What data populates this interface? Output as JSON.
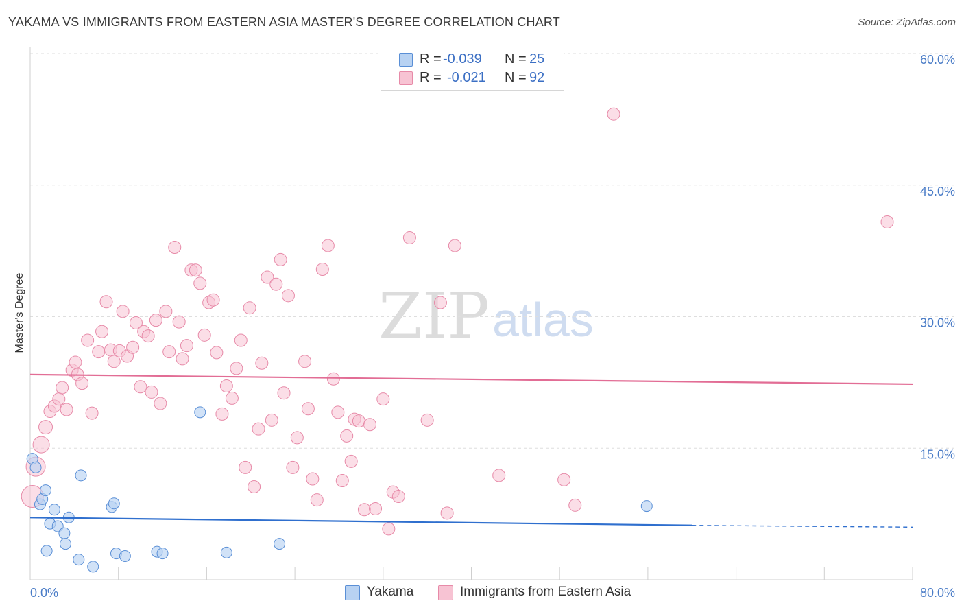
{
  "header": {
    "title": "YAKAMA VS IMMIGRANTS FROM EASTERN ASIA MASTER'S DEGREE CORRELATION CHART",
    "source": "Source: ZipAtlas.com"
  },
  "legend": {
    "rows": [
      {
        "r_label": "R =",
        "r_value": "-0.039",
        "n_label": "N =",
        "n_value": "25"
      },
      {
        "r_label": "R =",
        "r_value": "-0.021",
        "n_label": "N =",
        "n_value": "92"
      }
    ]
  },
  "bottom_legend": [
    {
      "label": "Yakama"
    },
    {
      "label": "Immigrants from Eastern Asia"
    }
  ],
  "watermark": {
    "zip": "ZIP",
    "atlas": "atlas"
  },
  "colors": {
    "blue_fill": "#b8d2f2",
    "blue_stroke": "#5a8fd6",
    "blue_line": "#2f6fce",
    "pink_fill": "#f7c3d3",
    "pink_stroke": "#e78aa8",
    "pink_line": "#e26d95",
    "tick_text": "#4a7cc7",
    "grid": "#dedede"
  },
  "chart_data": {
    "type": "scatter",
    "title": "YAKAMA VS IMMIGRANTS FROM EASTERN ASIA MASTER'S DEGREE CORRELATION CHART",
    "xlabel": "",
    "ylabel": "Master's Degree",
    "xlim": [
      0,
      80
    ],
    "ylim": [
      0,
      60
    ],
    "x_ticks": [
      "0.0%",
      "80.0%"
    ],
    "y_ticks": [
      {
        "value": 15,
        "label": "15.0%"
      },
      {
        "value": 30,
        "label": "30.0%"
      },
      {
        "value": 45,
        "label": "45.0%"
      },
      {
        "value": 60,
        "label": "60.0%"
      }
    ],
    "grid": true,
    "legend_position": "top-center",
    "series": [
      {
        "name": "Yakama",
        "color": "#5a8fd6",
        "points": [
          [
            0.2,
            13.8
          ],
          [
            0.5,
            12.8
          ],
          [
            0.9,
            8.6
          ],
          [
            1.1,
            9.2
          ],
          [
            1.4,
            10.2
          ],
          [
            1.5,
            3.3
          ],
          [
            1.8,
            6.4
          ],
          [
            2.2,
            8.0
          ],
          [
            2.5,
            6.1
          ],
          [
            3.1,
            5.3
          ],
          [
            3.2,
            4.1
          ],
          [
            3.5,
            7.1
          ],
          [
            4.4,
            2.3
          ],
          [
            4.6,
            11.9
          ],
          [
            5.7,
            1.5
          ],
          [
            7.4,
            8.3
          ],
          [
            7.6,
            8.7
          ],
          [
            7.8,
            3.0
          ],
          [
            8.6,
            2.7
          ],
          [
            11.5,
            3.2
          ],
          [
            12.0,
            3.0
          ],
          [
            15.4,
            19.1
          ],
          [
            17.8,
            3.1
          ],
          [
            22.6,
            4.1
          ],
          [
            55.9,
            8.4
          ]
        ],
        "trend": {
          "x": [
            0,
            60
          ],
          "y": [
            7.1,
            6.2
          ],
          "dashed_to": [
            80,
            6.0
          ]
        }
      },
      {
        "name": "Immigrants from Eastern Asia",
        "color": "#e78aa8",
        "points": [
          [
            0.2,
            9.5
          ],
          [
            0.5,
            12.9
          ],
          [
            1.0,
            15.4
          ],
          [
            1.4,
            17.4
          ],
          [
            1.8,
            19.2
          ],
          [
            2.2,
            19.8
          ],
          [
            2.6,
            20.6
          ],
          [
            2.9,
            21.9
          ],
          [
            3.3,
            19.4
          ],
          [
            3.8,
            23.9
          ],
          [
            4.1,
            24.8
          ],
          [
            4.3,
            23.4
          ],
          [
            4.7,
            22.4
          ],
          [
            5.2,
            27.3
          ],
          [
            5.6,
            19.0
          ],
          [
            6.2,
            26.0
          ],
          [
            6.5,
            28.3
          ],
          [
            6.9,
            31.7
          ],
          [
            7.3,
            26.2
          ],
          [
            7.6,
            24.9
          ],
          [
            8.1,
            26.1
          ],
          [
            8.4,
            30.6
          ],
          [
            8.8,
            25.5
          ],
          [
            9.3,
            26.5
          ],
          [
            9.6,
            29.3
          ],
          [
            10.0,
            22.0
          ],
          [
            10.3,
            28.3
          ],
          [
            10.7,
            27.8
          ],
          [
            11.0,
            21.4
          ],
          [
            11.4,
            29.6
          ],
          [
            11.8,
            20.1
          ],
          [
            12.3,
            30.6
          ],
          [
            12.6,
            26.0
          ],
          [
            13.1,
            37.9
          ],
          [
            13.5,
            29.4
          ],
          [
            13.8,
            25.2
          ],
          [
            14.2,
            26.7
          ],
          [
            14.6,
            35.3
          ],
          [
            15.0,
            35.3
          ],
          [
            15.4,
            33.8
          ],
          [
            15.8,
            27.9
          ],
          [
            16.2,
            31.6
          ],
          [
            16.6,
            31.9
          ],
          [
            16.9,
            25.9
          ],
          [
            17.4,
            18.9
          ],
          [
            17.8,
            22.1
          ],
          [
            18.3,
            20.7
          ],
          [
            18.7,
            24.1
          ],
          [
            19.1,
            27.3
          ],
          [
            19.5,
            12.8
          ],
          [
            19.9,
            31.0
          ],
          [
            20.3,
            10.6
          ],
          [
            20.7,
            17.2
          ],
          [
            21.0,
            24.7
          ],
          [
            21.5,
            34.5
          ],
          [
            21.9,
            18.2
          ],
          [
            22.3,
            33.7
          ],
          [
            22.7,
            36.5
          ],
          [
            23.0,
            21.3
          ],
          [
            23.4,
            32.4
          ],
          [
            23.8,
            12.8
          ],
          [
            24.2,
            16.2
          ],
          [
            24.9,
            24.9
          ],
          [
            25.2,
            19.5
          ],
          [
            25.6,
            11.5
          ],
          [
            26.0,
            9.1
          ],
          [
            26.5,
            35.4
          ],
          [
            27.0,
            38.1
          ],
          [
            27.5,
            22.9
          ],
          [
            27.9,
            19.1
          ],
          [
            28.3,
            11.3
          ],
          [
            28.7,
            16.4
          ],
          [
            29.1,
            13.5
          ],
          [
            29.4,
            18.3
          ],
          [
            29.8,
            18.1
          ],
          [
            30.3,
            8.0
          ],
          [
            30.8,
            17.7
          ],
          [
            31.3,
            8.1
          ],
          [
            32.0,
            20.6
          ],
          [
            32.5,
            5.8
          ],
          [
            32.9,
            10.0
          ],
          [
            33.4,
            9.5
          ],
          [
            34.4,
            39.0
          ],
          [
            36.0,
            18.2
          ],
          [
            37.2,
            31.6
          ],
          [
            37.8,
            7.6
          ],
          [
            38.5,
            38.1
          ],
          [
            42.5,
            11.9
          ],
          [
            48.4,
            11.4
          ],
          [
            49.4,
            8.5
          ],
          [
            52.9,
            53.1
          ],
          [
            77.7,
            40.8
          ]
        ],
        "trend": {
          "x": [
            0,
            80
          ],
          "y": [
            23.4,
            22.3
          ]
        }
      }
    ]
  }
}
